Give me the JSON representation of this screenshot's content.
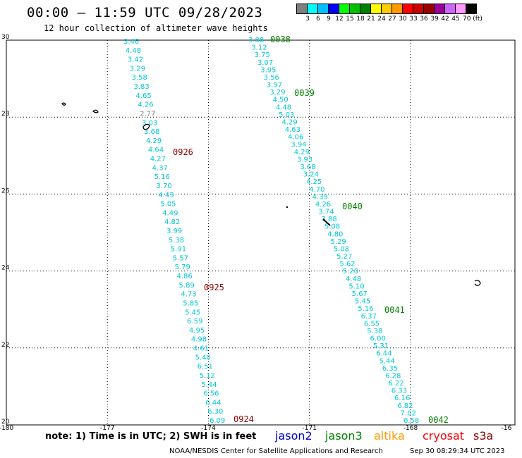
{
  "header": {
    "title": "00:00 – 11:59 UTC 09/28/2023",
    "subtitle": "12 hour collection of altimeter wave heights"
  },
  "colorbar": {
    "colors": [
      "#7f7f7f",
      "#00ffff",
      "#00c0ff",
      "#0000ff",
      "#00ff00",
      "#00c000",
      "#008000",
      "#ffff00",
      "#ffcc00",
      "#ff9900",
      "#ff0000",
      "#cc0000",
      "#990000",
      "#990099",
      "#cc66ff",
      "#ff99ff",
      "#000000"
    ],
    "labels": [
      "3",
      "6",
      "9",
      "12",
      "15",
      "18",
      "21",
      "24",
      "27",
      "30",
      "33",
      "36",
      "39",
      "42",
      "45",
      "70 (ft)"
    ]
  },
  "axes": {
    "x_ticks": [
      "-180",
      "-177",
      "-174",
      "-171",
      "-168",
      "-16"
    ],
    "y_ticks": [
      "30",
      "28",
      "26",
      "24",
      "22",
      "20"
    ],
    "lon_range": [
      -180,
      -164.9
    ],
    "lat_range": [
      20,
      30
    ],
    "gridlines": "dotted"
  },
  "track_west": {
    "color": "#00c8d7",
    "values": [
      "3.46",
      "4.48",
      "3.42",
      "3.29",
      "3.58",
      "3.83",
      "4.65",
      "4.26",
      "2.77",
      "3.03",
      "3.68",
      "4.29",
      "4.64",
      "4.27",
      "4.37",
      "5.16",
      "3.70",
      "4.43",
      "5.05",
      "4.49",
      "4.82",
      "3.99",
      "5.38",
      "5.91",
      "5.57",
      "5.79",
      "4.86",
      "5.89",
      "4.73",
      "5.85",
      "5.45",
      "6.59",
      "4.95",
      "4.98",
      "4.61",
      "5.40",
      "6.51",
      "5.12",
      "5.44",
      "6.56",
      "6.44",
      "6.30",
      "6.09"
    ],
    "gray_value": "2.77"
  },
  "track_east": {
    "color": "#00c8d7",
    "values": [
      "3.88",
      "3.12",
      "3.75",
      "3.07",
      "3.95",
      "3.56",
      "3.97",
      "3.29",
      "4.50",
      "4.48",
      "5.03",
      "4.29",
      "4.63",
      "4.06",
      "3.94",
      "4.29",
      "3.93",
      "3.68",
      "3.24",
      "4.25",
      "4.70",
      "4.39",
      "4.26",
      "3.74",
      "3.88",
      "5.08",
      "4.80",
      "5.29",
      "5.08",
      "5.27",
      "5.62",
      "5.20",
      "4.48",
      "5.10",
      "5.67",
      "5.45",
      "5.16",
      "6.37",
      "6.55",
      "5.38",
      "6.00",
      "5.31",
      "6.44",
      "5.44",
      "6.35",
      "6.28",
      "6.22",
      "6.33",
      "6.16",
      "6.82",
      "7.02",
      "6.58"
    ]
  },
  "time_labels": [
    {
      "text": "0038",
      "color": "#008000"
    },
    {
      "text": "0039",
      "color": "#008000"
    },
    {
      "text": "0040",
      "color": "#008000"
    },
    {
      "text": "0041",
      "color": "#008000"
    },
    {
      "text": "0042",
      "color": "#008000"
    },
    {
      "text": "0926",
      "color": "#8b0000"
    },
    {
      "text": "0925",
      "color": "#8b0000"
    },
    {
      "text": "0924",
      "color": "#8b0000"
    }
  ],
  "footer": {
    "note": "note: 1) Time is in UTC; 2) SWH is in feet",
    "missions": [
      {
        "name": "jason2",
        "color": "#0000cc"
      },
      {
        "name": "jason3",
        "color": "#008000"
      },
      {
        "name": "altika",
        "color": "#ff9900"
      },
      {
        "name": "cryosat",
        "color": "#ff0000"
      },
      {
        "name": "s3a",
        "color": "#8b0000"
      }
    ],
    "credit": "NOAA/NESDIS Center for Satellite Applications and Research",
    "stamp": "Sep 30 08:29:34 UTC 2023"
  }
}
